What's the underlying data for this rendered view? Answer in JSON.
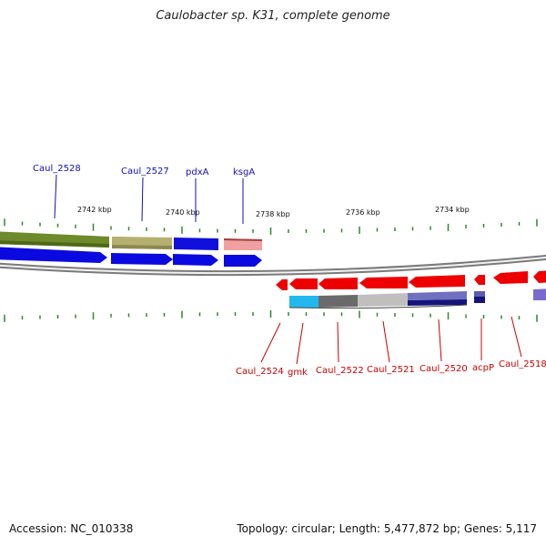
{
  "title": "Caulobacter sp. K31, complete genome",
  "footer": {
    "accession": "Accession: NC_010338",
    "summary": "Topology: circular; Length: 5,477,872 bp; Genes: 5,117"
  },
  "colors": {
    "forward_label": "#1010bb",
    "reverse_label": "#cc0000",
    "ticks": "#2a8a2a",
    "backbone": "#8a8a8a"
  },
  "kbp_labels": [
    "2742 kbp",
    "2740 kbp",
    "2738 kbp",
    "2736 kbp",
    "2734 kbp"
  ],
  "forward_genes": [
    "Caul_2528",
    "Caul_2527",
    "pdxA",
    "ksgA"
  ],
  "reverse_genes": [
    "Caul_2524",
    "gmk",
    "Caul_2522",
    "Caul_2521",
    "Caul_2520",
    "acpP",
    "Caul_2518"
  ]
}
